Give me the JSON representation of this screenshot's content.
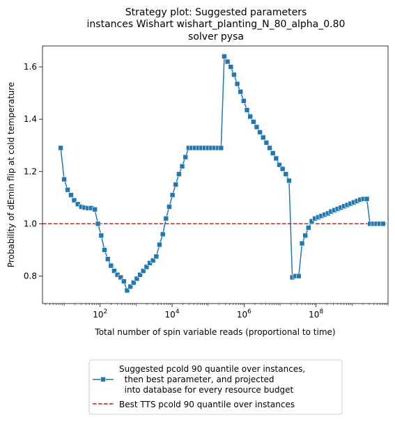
{
  "chart_data": {
    "type": "line",
    "title": [
      "Strategy plot: Suggested parameters",
      "instances Wishart wishart_planting_N_80_alpha_0.80",
      "solver pysa"
    ],
    "xlabel": "Total number of spin variable reads (proportional to time)",
    "ylabel": "Probability of dEmin flip at cold temperature",
    "x_scale": "log",
    "xlim": [
      2.5,
      10000000000.0
    ],
    "ylim": [
      0.695,
      1.68
    ],
    "x_ticks": [
      {
        "value": 100,
        "base": "10",
        "exp": "2"
      },
      {
        "value": 10000,
        "base": "10",
        "exp": "4"
      },
      {
        "value": 1000000,
        "base": "10",
        "exp": "6"
      },
      {
        "value": 100000000,
        "base": "10",
        "exp": "8"
      }
    ],
    "y_ticks": [
      {
        "value": 0.8,
        "label": "0.8"
      },
      {
        "value": 1.0,
        "label": "1.0"
      },
      {
        "value": 1.2,
        "label": "1.2"
      },
      {
        "value": 1.4,
        "label": "1.4"
      },
      {
        "value": 1.6,
        "label": "1.6"
      }
    ],
    "grid": false,
    "legend_position": "below",
    "series": [
      {
        "name": "Suggested pcold 90 quantile over instances,\n  then best parameter, and projected\n  into database for every resource budget",
        "color": "#1f77b4",
        "marker": "square",
        "points": [
          [
            8,
            1.29
          ],
          [
            10,
            1.17
          ],
          [
            12.5,
            1.13
          ],
          [
            15.5,
            1.11
          ],
          [
            19,
            1.09
          ],
          [
            24,
            1.075
          ],
          [
            30,
            1.065
          ],
          [
            37,
            1.062
          ],
          [
            46,
            1.06
          ],
          [
            57,
            1.06
          ],
          [
            71,
            1.055
          ],
          [
            87,
            1.0
          ],
          [
            107,
            0.955
          ],
          [
            132,
            0.9
          ],
          [
            163,
            0.865
          ],
          [
            200,
            0.84
          ],
          [
            246,
            0.82
          ],
          [
            302,
            0.805
          ],
          [
            372,
            0.795
          ],
          [
            457,
            0.78
          ],
          [
            562,
            0.745
          ],
          [
            692,
            0.76
          ],
          [
            851,
            0.775
          ],
          [
            1047,
            0.79
          ],
          [
            1288,
            0.805
          ],
          [
            1585,
            0.82
          ],
          [
            1950,
            0.835
          ],
          [
            2400,
            0.85
          ],
          [
            2950,
            0.86
          ],
          [
            3630,
            0.875
          ],
          [
            4470,
            0.92
          ],
          [
            5500,
            0.96
          ],
          [
            6760,
            1.02
          ],
          [
            8320,
            1.065
          ],
          [
            10230,
            1.11
          ],
          [
            12600,
            1.15
          ],
          [
            15500,
            1.19
          ],
          [
            19050,
            1.22
          ],
          [
            23440,
            1.255
          ],
          [
            28840,
            1.29
          ],
          [
            35480,
            1.29
          ],
          [
            43650,
            1.29
          ],
          [
            53700,
            1.29
          ],
          [
            66070,
            1.29
          ],
          [
            81280,
            1.29
          ],
          [
            100000,
            1.29
          ],
          [
            123000,
            1.29
          ],
          [
            151400,
            1.29
          ],
          [
            186200,
            1.29
          ],
          [
            229000,
            1.29
          ],
          [
            281800,
            1.64
          ],
          [
            346700,
            1.62
          ],
          [
            426600,
            1.6
          ],
          [
            524800,
            1.57
          ],
          [
            645700,
            1.535
          ],
          [
            794300,
            1.505
          ],
          [
            977200,
            1.47
          ],
          [
            1202000,
            1.435
          ],
          [
            1479000,
            1.41
          ],
          [
            1820000,
            1.39
          ],
          [
            2239000,
            1.37
          ],
          [
            2754000,
            1.35
          ],
          [
            3388000,
            1.33
          ],
          [
            4169000,
            1.31
          ],
          [
            5129000,
            1.29
          ],
          [
            6310000,
            1.27
          ],
          [
            7762000,
            1.25
          ],
          [
            9550000,
            1.225
          ],
          [
            11750000,
            1.21
          ],
          [
            14450000,
            1.19
          ],
          [
            17780000,
            1.165
          ],
          [
            21880000,
            0.795
          ],
          [
            26920000,
            0.8
          ],
          [
            33110000,
            0.8
          ],
          [
            40740000,
            0.925
          ],
          [
            50120000,
            0.955
          ],
          [
            61660000,
            0.985
          ],
          [
            75860000,
            1.01
          ],
          [
            93330000,
            1.02
          ],
          [
            114800000,
            1.025
          ],
          [
            141300000,
            1.03
          ],
          [
            173800000,
            1.035
          ],
          [
            213800000,
            1.04
          ],
          [
            263000000,
            1.047
          ],
          [
            323600000,
            1.052
          ],
          [
            398100000,
            1.057
          ],
          [
            489800000,
            1.062
          ],
          [
            602600000,
            1.067
          ],
          [
            741300000,
            1.072
          ],
          [
            912000000,
            1.077
          ],
          [
            1122000000,
            1.082
          ],
          [
            1380000000,
            1.087
          ],
          [
            1698000000,
            1.092
          ],
          [
            2089000000,
            1.095
          ],
          [
            2570000000,
            1.095
          ],
          [
            3162000000,
            1.0
          ],
          [
            3890000000,
            1.0
          ],
          [
            4786000000,
            1.0
          ],
          [
            5888000000,
            1.0
          ],
          [
            7244000000,
            1.0
          ]
        ]
      },
      {
        "name": "Best TTS pcold 90 quantile over instances",
        "color": "#ff0000",
        "style": "dashed",
        "hline": 1.0
      }
    ]
  }
}
